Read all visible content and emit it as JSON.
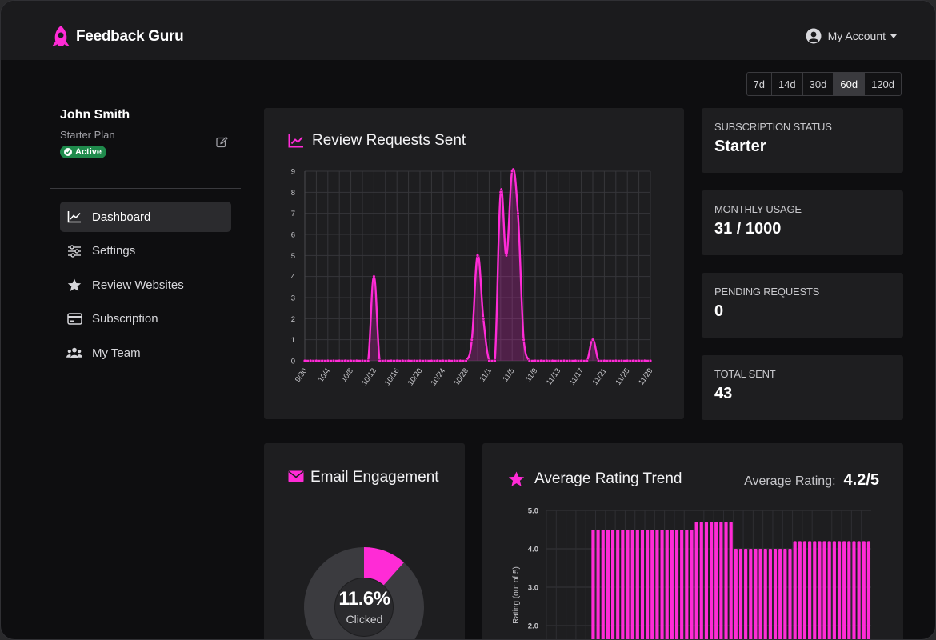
{
  "header": {
    "brand": "Feedback Guru",
    "account_label": "My Account"
  },
  "range_selector": [
    "7d",
    "14d",
    "30d",
    "60d",
    "120d"
  ],
  "range_active": "60d",
  "user": {
    "name": "John Smith",
    "plan": "Starter Plan",
    "status": "Active"
  },
  "nav": [
    {
      "label": "Dashboard",
      "icon": "line-chart-icon",
      "active": true
    },
    {
      "label": "Settings",
      "icon": "sliders-icon",
      "active": false
    },
    {
      "label": "Review Websites",
      "icon": "star-icon",
      "active": false
    },
    {
      "label": "Subscription",
      "icon": "credit-card-icon",
      "active": false
    },
    {
      "label": "My Team",
      "icon": "users-icon",
      "active": false
    }
  ],
  "review_requests": {
    "title": "Review Requests Sent"
  },
  "stats": [
    {
      "label": "SUBSCRIPTION STATUS",
      "value": "Starter"
    },
    {
      "label": "MONTHLY USAGE",
      "value": "31 / 1000"
    },
    {
      "label": "PENDING REQUESTS",
      "value": "0"
    },
    {
      "label": "TOTAL SENT",
      "value": "43"
    }
  ],
  "email_engagement": {
    "title": "Email Engagement",
    "percent_text": "11.6%",
    "caption": "Clicked",
    "clicked_fraction": 0.116
  },
  "rating_trend": {
    "title": "Average Rating Trend",
    "average_label": "Average Rating:",
    "average_value": "4.2/5"
  },
  "colors": {
    "accent": "#ff2bd6",
    "background": "#0e0e10",
    "card": "#1e1e20",
    "active_badge": "#1f8a4c"
  },
  "chart_data": [
    {
      "type": "line",
      "title": "Review Requests Sent",
      "ylim": [
        0,
        9
      ],
      "y_ticks": [
        0,
        1,
        2,
        3,
        4,
        5,
        6,
        7,
        8,
        9
      ],
      "x_tick_labels": [
        "9/30",
        "10/4",
        "10/8",
        "10/12",
        "10/16",
        "10/20",
        "10/24",
        "10/28",
        "11/1",
        "11/5",
        "11/9",
        "11/13",
        "11/17",
        "11/21",
        "11/25",
        "11/29"
      ],
      "x_tick_step": 4,
      "series": [
        {
          "values": [
            0,
            0,
            0,
            0,
            0,
            0,
            0,
            0,
            0,
            0,
            0,
            0,
            4,
            0,
            0,
            0,
            0,
            0,
            0,
            0,
            0,
            0,
            0,
            0,
            0,
            0,
            0,
            0,
            0,
            1,
            5,
            2,
            0,
            0,
            8,
            5,
            9,
            7,
            1,
            0,
            0,
            0,
            0,
            0,
            0,
            0,
            0,
            0,
            0,
            0,
            1,
            0,
            0,
            0,
            0,
            0,
            0,
            0,
            0,
            0,
            0
          ]
        }
      ],
      "grid": true
    },
    {
      "type": "bar",
      "title": "Average Rating Trend",
      "ylabel": "Rating (out of 5)",
      "ylim": [
        0,
        5
      ],
      "y_ticks": [
        2.0,
        3.0,
        4.0,
        5.0
      ],
      "values": [
        0,
        0,
        0,
        0,
        0,
        0,
        0,
        0,
        0,
        4.5,
        4.5,
        4.5,
        4.5,
        4.5,
        4.5,
        4.5,
        4.5,
        4.5,
        4.5,
        4.5,
        4.5,
        4.5,
        4.5,
        4.5,
        4.5,
        4.5,
        4.5,
        4.5,
        4.5,
        4.5,
        4.7,
        4.7,
        4.7,
        4.7,
        4.7,
        4.7,
        4.7,
        4.7,
        4.0,
        4.0,
        4.0,
        4.0,
        4.0,
        4.0,
        4.0,
        4.0,
        4.0,
        4.0,
        4.0,
        4.0,
        4.2,
        4.2,
        4.2,
        4.2,
        4.2,
        4.2,
        4.2,
        4.2,
        4.2,
        4.2,
        4.2,
        4.2,
        4.2,
        4.2,
        4.2,
        4.2
      ],
      "grid": true
    }
  ]
}
